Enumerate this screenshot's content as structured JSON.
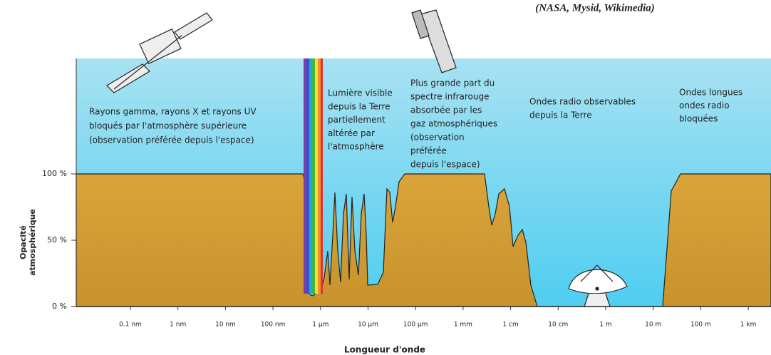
{
  "credit": "(NASA, Mysid, Wikimedia)",
  "y_axis": {
    "title": [
      "Opacité",
      "atmosphérique"
    ],
    "ticks": [
      "100 %",
      "50 %",
      "0 %"
    ]
  },
  "x_axis": {
    "title": "Longueur d'onde",
    "ticks": [
      "0.1 nm",
      "1 nm",
      "10 nm",
      "100 nm",
      "1 µm",
      "10 µm",
      "100 µm",
      "1 mm",
      "1 cm",
      "10 cm",
      "1 m",
      "10 m",
      "100 m",
      "1 km"
    ]
  },
  "annotations": [
    {
      "lines": [
        "Rayons gamma, rayons X et rayons UV",
        "bloqués par l'atmosphère supérieure",
        "(observation préférée depuis l'espace)"
      ]
    },
    {
      "lines": [
        "Lumière visible",
        "depuis la Terre",
        "partiellement",
        "altérée par",
        "l'atmosphère"
      ]
    },
    {
      "lines": [
        "Plus grande part du",
        "spectre infrarouge",
        "absorbée par les",
        "gaz atmosphériques",
        "(observation",
        "préférée",
        "depuis l'espace)"
      ]
    },
    {
      "lines": [
        "Ondes radio observables",
        "depuis la Terre"
      ]
    },
    {
      "lines": [
        "Ondes longues",
        "ondes radio",
        "bloquées"
      ]
    }
  ]
}
